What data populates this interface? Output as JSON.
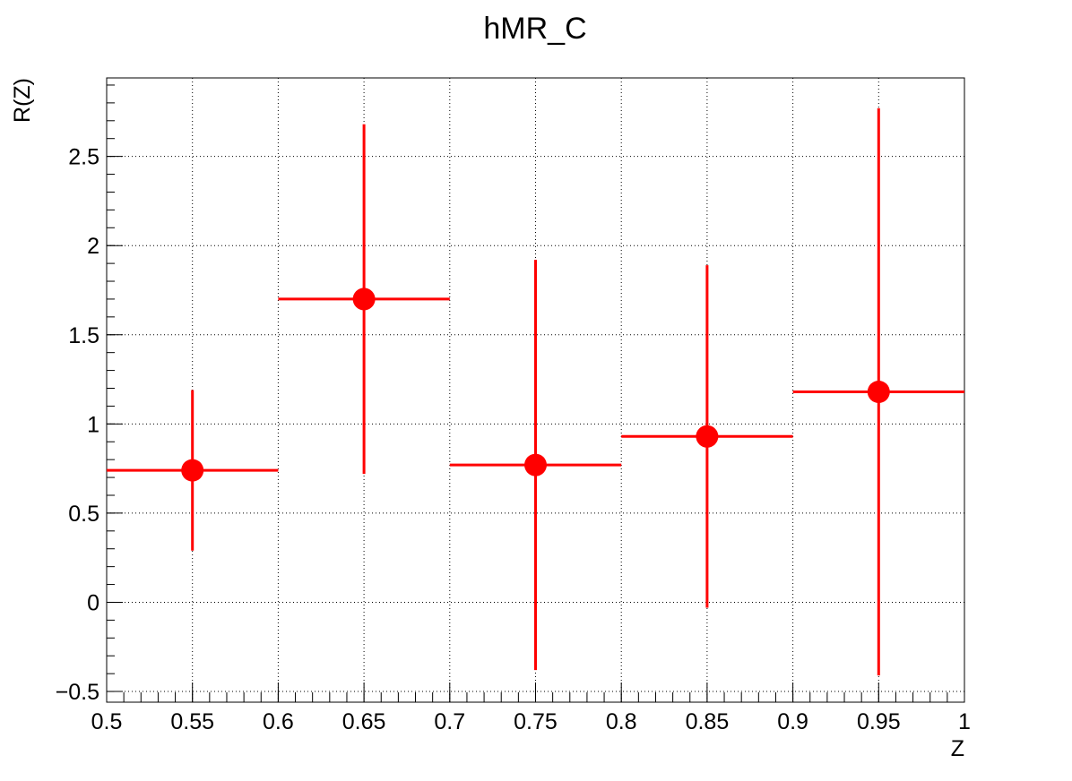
{
  "chart_data": {
    "type": "scatter",
    "title": "hMR_C",
    "xlabel": "Z",
    "ylabel": "R(Z)",
    "xlim": [
      0.5,
      1.0
    ],
    "ylim": [
      -0.56,
      2.94
    ],
    "grid": true,
    "xticks": [
      0.5,
      0.55,
      0.6,
      0.65,
      0.7,
      0.75,
      0.8,
      0.85,
      0.9,
      0.95,
      1.0
    ],
    "xtick_labels": [
      "0.5",
      "0.55",
      "0.6",
      "0.65",
      "0.7",
      "0.75",
      "0.8",
      "0.85",
      "0.9",
      "0.95",
      "1"
    ],
    "yticks": [
      -0.5,
      0.0,
      0.5,
      1.0,
      1.5,
      2.0,
      2.5
    ],
    "ytick_labels": [
      "−0.5",
      "0",
      "0.5",
      "1",
      "1.5",
      "2",
      "2.5"
    ],
    "series": [
      {
        "color": "#ff0000",
        "points": [
          {
            "x": 0.55,
            "y": 0.74,
            "xerr": 0.05,
            "yerr": 0.45
          },
          {
            "x": 0.65,
            "y": 1.7,
            "xerr": 0.05,
            "yerr": 0.98
          },
          {
            "x": 0.75,
            "y": 0.77,
            "xerr": 0.05,
            "yerr": 1.15
          },
          {
            "x": 0.85,
            "y": 0.93,
            "xerr": 0.05,
            "yerr": 0.96
          },
          {
            "x": 0.95,
            "y": 1.18,
            "xerr": 0.05,
            "yerr": 1.59
          }
        ]
      }
    ]
  }
}
